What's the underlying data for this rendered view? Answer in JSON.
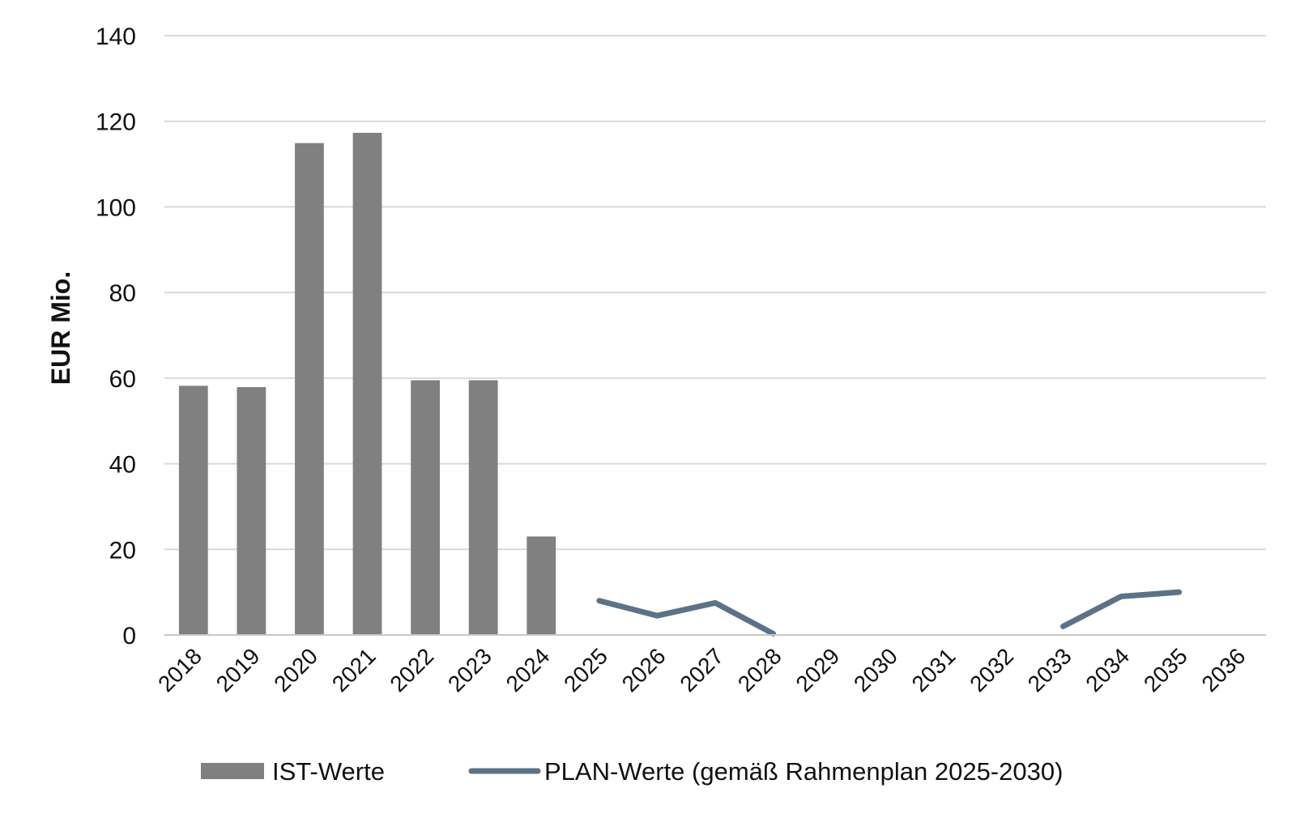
{
  "chart_data": {
    "type": "bar",
    "categories": [
      "2018",
      "2019",
      "2020",
      "2021",
      "2022",
      "2023",
      "2024",
      "2025",
      "2026",
      "2027",
      "2028",
      "2029",
      "2030",
      "2031",
      "2032",
      "2033",
      "2034",
      "2035",
      "2036"
    ],
    "ylabel": "EUR Mio.",
    "xlabel": "",
    "ylim": [
      0,
      140
    ],
    "yticks": [
      "0",
      "20",
      "40",
      "60",
      "80",
      "100",
      "120",
      "140"
    ],
    "grid": true,
    "legend_position": "bottom",
    "series": [
      {
        "name": "IST-Werte",
        "type": "bar",
        "color": "#808080",
        "values": [
          58.2,
          57.9,
          114.9,
          117.3,
          59.5,
          59.5,
          23.0,
          null,
          null,
          null,
          null,
          null,
          null,
          null,
          null,
          null,
          null,
          null,
          null
        ]
      },
      {
        "name": "PLAN-Werte (gemäß Rahmenplan 2025-2030)",
        "type": "line",
        "color": "#5a7388",
        "values": [
          null,
          null,
          null,
          null,
          null,
          null,
          null,
          8.0,
          4.5,
          7.5,
          0.3,
          null,
          null,
          null,
          null,
          2.0,
          9.0,
          10.0,
          null
        ]
      }
    ]
  }
}
